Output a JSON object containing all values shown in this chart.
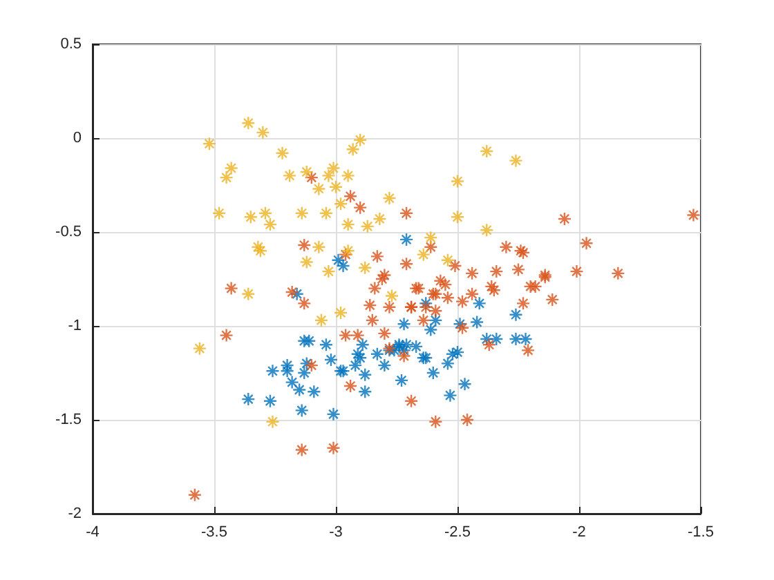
{
  "chart_data": {
    "type": "scatter",
    "marker": "cross",
    "grid": true,
    "xlim": [
      -4,
      -1.5
    ],
    "xticks": [
      -4,
      -3.5,
      -3,
      -2.5,
      -2,
      -1.5
    ],
    "ylim": [
      -2,
      0.5
    ],
    "yticks": [
      -2,
      -1.5,
      -1,
      -0.5,
      0,
      0.5
    ],
    "series": [
      {
        "color": "#0072bd",
        "x": [
          -2.71,
          -2.99,
          -2.97,
          -3.16,
          -2.72,
          -3.13,
          -3.11,
          -3.04,
          -2.89,
          -2.91,
          -2.9,
          -2.83,
          -2.78,
          -2.74,
          -2.71,
          -3.02,
          -3.12,
          -3.2,
          -3.26,
          -3.2,
          -3.13,
          -2.98,
          -2.97,
          -2.92,
          -2.8,
          -2.88,
          -3.18,
          -3.15,
          -3.09,
          -2.88,
          -2.73,
          -3.36,
          -3.27,
          -3.14,
          -3.01,
          -2.63,
          -2.41,
          -2.26,
          -2.59,
          -2.49,
          -2.42,
          -2.61,
          -2.38,
          -2.34,
          -2.26,
          -2.22,
          -2.74,
          -2.67,
          -2.76,
          -2.72,
          -2.64,
          -2.63,
          -2.52,
          -2.5,
          -2.54,
          -2.6,
          -2.47,
          -2.53
        ],
        "values": [
          -0.54,
          -0.65,
          -0.68,
          -0.83,
          -0.99,
          -1.08,
          -1.08,
          -1.1,
          -1.1,
          -1.15,
          -1.17,
          -1.15,
          -1.13,
          -1.11,
          -1.1,
          -1.18,
          -1.2,
          -1.21,
          -1.24,
          -1.24,
          -1.25,
          -1.24,
          -1.24,
          -1.21,
          -1.21,
          -1.26,
          -1.3,
          -1.34,
          -1.35,
          -1.35,
          -1.29,
          -1.39,
          -1.4,
          -1.45,
          -1.47,
          -0.88,
          -0.88,
          -0.94,
          -0.97,
          -0.99,
          -0.98,
          -1.02,
          -1.07,
          -1.07,
          -1.07,
          -1.07,
          -1.1,
          -1.11,
          -1.13,
          -1.13,
          -1.17,
          -1.17,
          -1.15,
          -1.14,
          -1.2,
          -1.25,
          -1.31,
          -1.37
        ]
      },
      {
        "color": "#d95319",
        "x": [
          -3.1,
          -2.94,
          -2.9,
          -2.71,
          -3.13,
          -2.96,
          -2.83,
          -2.71,
          -2.61,
          -2.8,
          -2.84,
          -2.67,
          -3.43,
          -3.18,
          -2.06,
          -1.53,
          -1.97,
          -2.3,
          -2.24,
          -2.23,
          -2.51,
          -2.44,
          -2.34,
          -2.25,
          -2.14,
          -2.01,
          -1.84,
          -2.57,
          -2.55,
          -2.59,
          -2.54,
          -2.44,
          -2.36,
          -2.35,
          -2.2,
          -2.18,
          -2.11,
          -3.13,
          -2.81,
          -2.86,
          -2.78,
          -2.69,
          -2.85,
          -2.96,
          -2.91,
          -2.8,
          -3.45,
          -2.78,
          -2.72,
          -3.1,
          -2.94,
          -2.69,
          -3.14,
          -3.01,
          -3.58,
          -2.66,
          -2.14,
          -2.6,
          -2.69,
          -2.63,
          -2.59,
          -2.48,
          -2.23,
          -2.64,
          -2.48,
          -2.37,
          -2.21,
          -2.59,
          -2.46
        ],
        "values": [
          -0.21,
          -0.31,
          -0.37,
          -0.4,
          -0.57,
          -0.62,
          -0.63,
          -0.67,
          -0.58,
          -0.73,
          -0.8,
          -0.8,
          -0.8,
          -0.82,
          -0.43,
          -0.41,
          -0.56,
          -0.58,
          -0.6,
          -0.61,
          -0.68,
          -0.72,
          -0.71,
          -0.7,
          -0.73,
          -0.71,
          -0.72,
          -0.76,
          -0.78,
          -0.83,
          -0.85,
          -0.83,
          -0.79,
          -0.81,
          -0.79,
          -0.79,
          -0.86,
          -0.88,
          -0.75,
          -0.89,
          -0.9,
          -0.9,
          -0.97,
          -1.05,
          -1.05,
          -1.04,
          -1.05,
          -1.12,
          -1.16,
          -1.21,
          -1.32,
          -1.4,
          -1.66,
          -1.65,
          -1.9,
          -0.8,
          -0.74,
          -0.83,
          -0.9,
          -0.9,
          -0.92,
          -0.87,
          -0.88,
          -0.97,
          -1.01,
          -1.1,
          -1.13,
          -1.51,
          -1.5
        ]
      },
      {
        "color": "#edb120",
        "x": [
          -3.36,
          -3.3,
          -3.52,
          -3.22,
          -2.9,
          -2.93,
          -3.43,
          -3.45,
          -3.19,
          -3.12,
          -3.03,
          -3.01,
          -2.95,
          -3.07,
          -3,
          -2.98,
          -2.78,
          -3.48,
          -3.35,
          -3.29,
          -3.27,
          -3.14,
          -3.04,
          -2.95,
          -2.87,
          -2.82,
          -2.61,
          -3.32,
          -3.31,
          -3.07,
          -3.12,
          -3.03,
          -2.95,
          -2.88,
          -3.36,
          -2.5,
          -2.5,
          -2.38,
          -2.26,
          -2.38,
          -2.64,
          -2.54,
          -2.98,
          -3.06,
          -3.56,
          -3.26,
          -2.77
        ],
        "values": [
          0.08,
          0.03,
          -0.03,
          -0.08,
          -0.01,
          -0.06,
          -0.16,
          -0.21,
          -0.2,
          -0.18,
          -0.2,
          -0.16,
          -0.2,
          -0.27,
          -0.26,
          -0.35,
          -0.32,
          -0.4,
          -0.42,
          -0.4,
          -0.46,
          -0.4,
          -0.4,
          -0.46,
          -0.47,
          -0.43,
          -0.53,
          -0.58,
          -0.6,
          -0.58,
          -0.66,
          -0.71,
          -0.6,
          -0.69,
          -0.83,
          -0.23,
          -0.42,
          -0.07,
          -0.12,
          -0.49,
          -0.62,
          -0.65,
          -0.93,
          -0.97,
          -1.12,
          -1.51,
          -0.84
        ]
      }
    ]
  }
}
